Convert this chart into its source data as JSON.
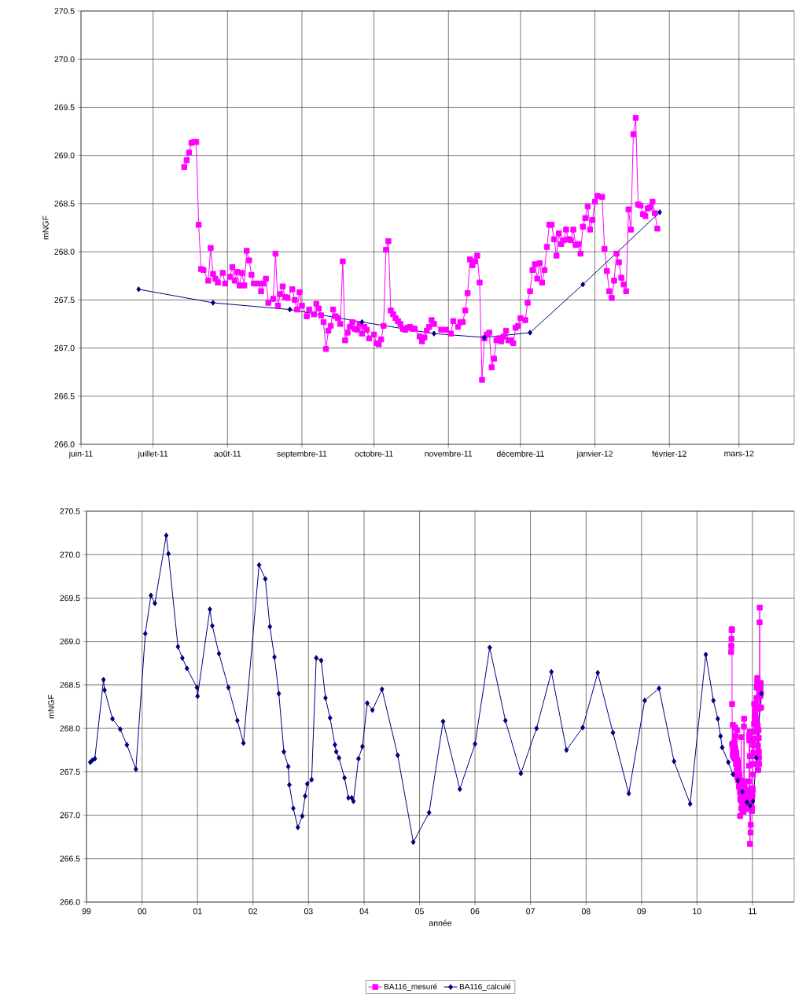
{
  "chart_data": [
    {
      "type": "line",
      "ylabel": "mNGF",
      "grid": true,
      "line_style": "solid",
      "xlim": [
        "2011-06-01",
        "2012-03-24"
      ],
      "ylim": [
        266.0,
        270.5
      ],
      "xticks": [
        {
          "value": "2011-06-01",
          "label": "juin-11"
        },
        {
          "value": "2011-07-01",
          "label": "juillet-11"
        },
        {
          "value": "2011-08-01",
          "label": "août-11"
        },
        {
          "value": "2011-09-01",
          "label": "septembre-11"
        },
        {
          "value": "2011-10-01",
          "label": "octobre-11"
        },
        {
          "value": "2011-11-01",
          "label": "novembre-11"
        },
        {
          "value": "2011-12-01",
          "label": "décembre-11"
        },
        {
          "value": "2012-01-01",
          "label": "janvier-12"
        },
        {
          "value": "2012-02-01",
          "label": "février-12"
        },
        {
          "value": "2012-03-01",
          "label": "mars-12"
        }
      ],
      "yticks": [
        {
          "value": 266,
          "label": "266.0"
        },
        266.5,
        {
          "value": 267,
          "label": "267.0"
        },
        267.5,
        {
          "value": 268,
          "label": "268.0"
        },
        268.5,
        {
          "value": 269,
          "label": "269.0"
        },
        269.5,
        {
          "value": 270,
          "label": "270.0"
        },
        270.5
      ],
      "series": [
        {
          "color": "#ff00ff",
          "marker": "square",
          "x": [
            "2011-07-14",
            "2011-07-15",
            "2011-07-16",
            "2011-07-17",
            "2011-07-18",
            "2011-07-19",
            "2011-07-20",
            "2011-07-21",
            "2011-07-22",
            "2011-07-24",
            "2011-07-25",
            "2011-07-26",
            "2011-07-27",
            "2011-07-28",
            "2011-07-30",
            "2011-07-31",
            "2011-08-02",
            "2011-08-03",
            "2011-08-04",
            "2011-08-05",
            "2011-08-06",
            "2011-08-07",
            "2011-08-08",
            "2011-08-09",
            "2011-08-10",
            "2011-08-11",
            "2011-08-12",
            "2011-08-14",
            "2011-08-15",
            "2011-08-16",
            "2011-08-17",
            "2011-08-18",
            "2011-08-20",
            "2011-08-21",
            "2011-08-22",
            "2011-08-23",
            "2011-08-24",
            "2011-08-25",
            "2011-08-26",
            "2011-08-28",
            "2011-08-29",
            "2011-08-30",
            "2011-08-31",
            "2011-09-01",
            "2011-09-03",
            "2011-09-04",
            "2011-09-06",
            "2011-09-07",
            "2011-09-08",
            "2011-09-09",
            "2011-09-10",
            "2011-09-11",
            "2011-09-12",
            "2011-09-13",
            "2011-09-14",
            "2011-09-15",
            "2011-09-16",
            "2011-09-17",
            "2011-09-18",
            "2011-09-19",
            "2011-09-20",
            "2011-09-21",
            "2011-09-22",
            "2011-09-23",
            "2011-09-24",
            "2011-09-25",
            "2011-09-26",
            "2011-09-27",
            "2011-09-28",
            "2011-09-29",
            "2011-10-01",
            "2011-10-02",
            "2011-10-03",
            "2011-10-04",
            "2011-10-05",
            "2011-10-06",
            "2011-10-07",
            "2011-10-08",
            "2011-10-09",
            "2011-10-10",
            "2011-10-11",
            "2011-10-12",
            "2011-10-13",
            "2011-10-14",
            "2011-10-15",
            "2011-10-16",
            "2011-10-17",
            "2011-10-18",
            "2011-10-20",
            "2011-10-21",
            "2011-10-22",
            "2011-10-23",
            "2011-10-24",
            "2011-10-25",
            "2011-10-26",
            "2011-10-29",
            "2011-10-31",
            "2011-11-02",
            "2011-11-03",
            "2011-11-05",
            "2011-11-06",
            "2011-11-07",
            "2011-11-08",
            "2011-11-09",
            "2011-11-10",
            "2011-11-11",
            "2011-11-12",
            "2011-11-13",
            "2011-11-14",
            "2011-11-15",
            "2011-11-16",
            "2011-11-17",
            "2011-11-18",
            "2011-11-19",
            "2011-11-20",
            "2011-11-21",
            "2011-11-22",
            "2011-11-23",
            "2011-11-24",
            "2011-11-25",
            "2011-11-26",
            "2011-11-27",
            "2011-11-28",
            "2011-11-29",
            "2011-11-30",
            "2011-12-01",
            "2011-12-03",
            "2011-12-04",
            "2011-12-05",
            "2011-12-06",
            "2011-12-07",
            "2011-12-08",
            "2011-12-09",
            "2011-12-10",
            "2011-12-11",
            "2011-12-12",
            "2011-12-13",
            "2011-12-14",
            "2011-12-15",
            "2011-12-16",
            "2011-12-17",
            "2011-12-18",
            "2011-12-19",
            "2011-12-20",
            "2011-12-21",
            "2011-12-22",
            "2011-12-23",
            "2011-12-24",
            "2011-12-25",
            "2011-12-26",
            "2011-12-27",
            "2011-12-28",
            "2011-12-29",
            "2011-12-30",
            "2011-12-31",
            "2012-01-01",
            "2012-01-02",
            "2012-01-04",
            "2012-01-05",
            "2012-01-06",
            "2012-01-07",
            "2012-01-08",
            "2012-01-09",
            "2012-01-10",
            "2012-01-11",
            "2012-01-12",
            "2012-01-13",
            "2012-01-14",
            "2012-01-15",
            "2012-01-16",
            "2012-01-17",
            "2012-01-18",
            "2012-01-19",
            "2012-01-20",
            "2012-01-21",
            "2012-01-22",
            "2012-01-23",
            "2012-01-24",
            "2012-01-25",
            "2012-01-26",
            "2012-01-27"
          ],
          "values": [
            268.88,
            268.95,
            269.03,
            269.13,
            269.14,
            269.14,
            268.28,
            267.82,
            267.81,
            267.7,
            268.04,
            267.77,
            267.72,
            267.68,
            267.78,
            267.67,
            267.74,
            267.84,
            267.7,
            267.79,
            267.65,
            267.78,
            267.65,
            268.01,
            267.91,
            267.76,
            267.67,
            267.67,
            267.59,
            267.67,
            267.72,
            267.47,
            267.51,
            267.98,
            267.44,
            267.56,
            267.64,
            267.53,
            267.52,
            267.61,
            267.5,
            267.4,
            267.58,
            267.44,
            267.33,
            267.4,
            267.35,
            267.46,
            267.41,
            267.34,
            267.27,
            266.99,
            267.18,
            267.23,
            267.4,
            267.33,
            267.31,
            267.25,
            267.9,
            267.08,
            267.16,
            267.22,
            267.27,
            267.2,
            267.19,
            267.25,
            267.15,
            267.22,
            267.19,
            267.1,
            267.14,
            267.05,
            267.04,
            267.09,
            267.23,
            268.02,
            268.11,
            267.39,
            267.35,
            267.31,
            267.28,
            267.25,
            267.2,
            267.19,
            267.21,
            267.22,
            267.2,
            267.2,
            267.12,
            267.07,
            267.11,
            267.18,
            267.22,
            267.29,
            267.25,
            267.19,
            267.19,
            267.15,
            267.28,
            267.22,
            267.27,
            267.27,
            267.39,
            267.57,
            267.92,
            267.86,
            267.9,
            267.96,
            267.68,
            266.67,
            267.1,
            267.14,
            267.16,
            266.8,
            266.89,
            267.08,
            267.1,
            267.07,
            267.12,
            267.18,
            267.08,
            267.08,
            267.05,
            267.21,
            267.23,
            267.31,
            267.29,
            267.47,
            267.59,
            267.81,
            267.87,
            267.72,
            267.88,
            267.68,
            267.81,
            268.05,
            268.28,
            268.28,
            268.13,
            267.96,
            268.19,
            268.08,
            268.12,
            268.23,
            268.13,
            268.12,
            268.23,
            268.07,
            268.08,
            267.98,
            268.26,
            268.35,
            268.47,
            268.23,
            268.33,
            268.52,
            268.58,
            268.57,
            268.03,
            267.8,
            267.59,
            267.52,
            267.7,
            267.98,
            267.89,
            267.73,
            267.66,
            267.59,
            268.44,
            268.23,
            269.22,
            269.39,
            268.49,
            268.48,
            268.39,
            268.37,
            268.45,
            268.46,
            268.52,
            268.4,
            268.24
          ]
        },
        {
          "color": "#000080",
          "marker": "diamond",
          "x": [
            "2011-06-25",
            "2011-07-26",
            "2011-08-27",
            "2011-09-26",
            "2011-10-26",
            "2011-11-16",
            "2011-12-05",
            "2011-12-27",
            "2012-01-28"
          ],
          "values": [
            267.61,
            267.47,
            267.4,
            267.27,
            267.15,
            267.11,
            267.16,
            267.66,
            268.41
          ]
        }
      ]
    },
    {
      "type": "line",
      "ylabel": "mNGF",
      "xlabel": "année",
      "grid": true,
      "line_style": "solid",
      "legend": "bottom",
      "xlim": [
        "1999-12-01",
        "2012-09-01"
      ],
      "ylim": [
        266.0,
        270.5
      ],
      "xticks": [
        {
          "value": "1999-12-01",
          "label": "99"
        },
        {
          "value": "2000-12-01",
          "label": "00"
        },
        {
          "value": "2001-12-01",
          "label": "01"
        },
        {
          "value": "2002-12-01",
          "label": "02"
        },
        {
          "value": "2003-12-01",
          "label": "03"
        },
        {
          "value": "2004-12-01",
          "label": "04"
        },
        {
          "value": "2005-12-01",
          "label": "05"
        },
        {
          "value": "2006-12-01",
          "label": "06"
        },
        {
          "value": "2007-12-01",
          "label": "07"
        },
        {
          "value": "2008-12-01",
          "label": "08"
        },
        {
          "value": "2009-12-01",
          "label": "09"
        },
        {
          "value": "2010-12-01",
          "label": "10"
        },
        {
          "value": "2011-12-01",
          "label": "11"
        }
      ],
      "yticks": [
        {
          "value": 266,
          "label": "266.0"
        },
        266.5,
        {
          "value": 267,
          "label": "267.0"
        },
        267.5,
        {
          "value": 268,
          "label": "268.0"
        },
        268.5,
        {
          "value": 269,
          "label": "269.0"
        },
        269.5,
        {
          "value": 270,
          "label": "270.0"
        },
        270.5
      ],
      "series": [
        {
          "name": "BA116_mesuré",
          "color": "#ff00ff",
          "marker": "square",
          "x": [
            "2011-07-14",
            "2011-07-15",
            "2011-07-16",
            "2011-07-17",
            "2011-07-18",
            "2011-07-19",
            "2011-07-20",
            "2011-07-21",
            "2011-07-22",
            "2011-07-24",
            "2011-07-25",
            "2011-07-26",
            "2011-07-27",
            "2011-07-28",
            "2011-07-30",
            "2011-07-31",
            "2011-08-02",
            "2011-08-03",
            "2011-08-04",
            "2011-08-05",
            "2011-08-06",
            "2011-08-07",
            "2011-08-08",
            "2011-08-09",
            "2011-08-10",
            "2011-08-11",
            "2011-08-12",
            "2011-08-14",
            "2011-08-15",
            "2011-08-16",
            "2011-08-17",
            "2011-08-18",
            "2011-08-20",
            "2011-08-21",
            "2011-08-22",
            "2011-08-23",
            "2011-08-24",
            "2011-08-25",
            "2011-08-26",
            "2011-08-28",
            "2011-08-29",
            "2011-08-30",
            "2011-08-31",
            "2011-09-01",
            "2011-09-03",
            "2011-09-04",
            "2011-09-06",
            "2011-09-07",
            "2011-09-08",
            "2011-09-09",
            "2011-09-10",
            "2011-09-11",
            "2011-09-12",
            "2011-09-13",
            "2011-09-14",
            "2011-09-15",
            "2011-09-16",
            "2011-09-17",
            "2011-09-18",
            "2011-09-19",
            "2011-09-20",
            "2011-09-21",
            "2011-09-22",
            "2011-09-23",
            "2011-09-24",
            "2011-09-25",
            "2011-09-26",
            "2011-09-27",
            "2011-09-28",
            "2011-09-29",
            "2011-10-01",
            "2011-10-02",
            "2011-10-03",
            "2011-10-04",
            "2011-10-05",
            "2011-10-06",
            "2011-10-07",
            "2011-10-08",
            "2011-10-09",
            "2011-10-10",
            "2011-10-11",
            "2011-10-12",
            "2011-10-13",
            "2011-10-14",
            "2011-10-15",
            "2011-10-16",
            "2011-10-17",
            "2011-10-18",
            "2011-10-20",
            "2011-10-21",
            "2011-10-22",
            "2011-10-23",
            "2011-10-24",
            "2011-10-25",
            "2011-10-26",
            "2011-10-29",
            "2011-10-31",
            "2011-11-02",
            "2011-11-03",
            "2011-11-05",
            "2011-11-06",
            "2011-11-07",
            "2011-11-08",
            "2011-11-09",
            "2011-11-10",
            "2011-11-11",
            "2011-11-12",
            "2011-11-13",
            "2011-11-14",
            "2011-11-15",
            "2011-11-16",
            "2011-11-17",
            "2011-11-18",
            "2011-11-19",
            "2011-11-20",
            "2011-11-21",
            "2011-11-22",
            "2011-11-23",
            "2011-11-24",
            "2011-11-25",
            "2011-11-26",
            "2011-11-27",
            "2011-11-28",
            "2011-11-29",
            "2011-11-30",
            "2011-12-01",
            "2011-12-03",
            "2011-12-04",
            "2011-12-05",
            "2011-12-06",
            "2011-12-07",
            "2011-12-08",
            "2011-12-09",
            "2011-12-10",
            "2011-12-11",
            "2011-12-12",
            "2011-12-13",
            "2011-12-14",
            "2011-12-15",
            "2011-12-16",
            "2011-12-17",
            "2011-12-18",
            "2011-12-19",
            "2011-12-20",
            "2011-12-21",
            "2011-12-22",
            "2011-12-23",
            "2011-12-24",
            "2011-12-25",
            "2011-12-26",
            "2011-12-27",
            "2011-12-28",
            "2011-12-29",
            "2011-12-30",
            "2011-12-31",
            "2012-01-01",
            "2012-01-02",
            "2012-01-04",
            "2012-01-05",
            "2012-01-06",
            "2012-01-07",
            "2012-01-08",
            "2012-01-09",
            "2012-01-10",
            "2012-01-11",
            "2012-01-12",
            "2012-01-13",
            "2012-01-14",
            "2012-01-15",
            "2012-01-16",
            "2012-01-17",
            "2012-01-18",
            "2012-01-19",
            "2012-01-20",
            "2012-01-21",
            "2012-01-22",
            "2012-01-23",
            "2012-01-24",
            "2012-01-25",
            "2012-01-26",
            "2012-01-27"
          ],
          "values": [
            268.88,
            268.95,
            269.03,
            269.13,
            269.14,
            269.14,
            268.28,
            267.82,
            267.81,
            267.7,
            268.04,
            267.77,
            267.72,
            267.68,
            267.78,
            267.67,
            267.74,
            267.84,
            267.7,
            267.79,
            267.65,
            267.78,
            267.65,
            268.01,
            267.91,
            267.76,
            267.67,
            267.67,
            267.59,
            267.67,
            267.72,
            267.47,
            267.51,
            267.98,
            267.44,
            267.56,
            267.64,
            267.53,
            267.52,
            267.61,
            267.5,
            267.4,
            267.58,
            267.44,
            267.33,
            267.4,
            267.35,
            267.46,
            267.41,
            267.34,
            267.27,
            266.99,
            267.18,
            267.23,
            267.4,
            267.33,
            267.31,
            267.25,
            267.9,
            267.08,
            267.16,
            267.22,
            267.27,
            267.2,
            267.19,
            267.25,
            267.15,
            267.22,
            267.19,
            267.1,
            267.14,
            267.05,
            267.04,
            267.09,
            267.23,
            268.02,
            268.11,
            267.39,
            267.35,
            267.31,
            267.28,
            267.25,
            267.2,
            267.19,
            267.21,
            267.22,
            267.2,
            267.2,
            267.12,
            267.07,
            267.11,
            267.18,
            267.22,
            267.29,
            267.25,
            267.19,
            267.19,
            267.15,
            267.28,
            267.22,
            267.27,
            267.27,
            267.39,
            267.57,
            267.92,
            267.86,
            267.9,
            267.96,
            267.68,
            266.67,
            267.1,
            267.14,
            267.16,
            266.8,
            266.89,
            267.08,
            267.1,
            267.07,
            267.12,
            267.18,
            267.08,
            267.08,
            267.05,
            267.21,
            267.23,
            267.31,
            267.29,
            267.47,
            267.59,
            267.81,
            267.87,
            267.72,
            267.88,
            267.68,
            267.81,
            268.05,
            268.28,
            268.28,
            268.13,
            267.96,
            268.19,
            268.08,
            268.12,
            268.23,
            268.13,
            268.12,
            268.23,
            268.07,
            268.08,
            267.98,
            268.26,
            268.35,
            268.47,
            268.23,
            268.33,
            268.52,
            268.58,
            268.57,
            268.03,
            267.8,
            267.59,
            267.52,
            267.7,
            267.98,
            267.89,
            267.73,
            267.66,
            267.59,
            268.44,
            268.23,
            269.22,
            269.39,
            268.49,
            268.48,
            268.39,
            268.37,
            268.45,
            268.46,
            268.52,
            268.4,
            268.24
          ]
        },
        {
          "name": "BA116_calculé",
          "color": "#000080",
          "marker": "diamond",
          "x": [
            "1999-12-26",
            "2000-01-07",
            "2000-01-25",
            "2000-03-22",
            "2000-03-29",
            "2000-05-20",
            "2000-07-10",
            "2000-08-23",
            "2000-10-21",
            "2000-12-22",
            "2001-01-28",
            "2001-02-23",
            "2001-05-09",
            "2001-05-23",
            "2001-07-25",
            "2001-08-23",
            "2001-09-22",
            "2001-11-27",
            "2001-12-01",
            "2002-02-20",
            "2002-03-08",
            "2002-04-21",
            "2002-06-22",
            "2002-08-20",
            "2002-09-29",
            "2003-01-10",
            "2003-02-20",
            "2003-03-22",
            "2003-04-21",
            "2003-05-20",
            "2003-06-22",
            "2003-07-21",
            "2003-07-28",
            "2003-08-23",
            "2003-09-22",
            "2003-10-21",
            "2003-11-09",
            "2003-11-23",
            "2003-12-22",
            "2004-01-21",
            "2004-02-23",
            "2004-03-22",
            "2004-04-21",
            "2004-05-23",
            "2004-06-01",
            "2004-06-19",
            "2004-07-25",
            "2004-08-20",
            "2004-09-11",
            "2004-09-22",
            "2004-10-25",
            "2004-11-20",
            "2004-12-22",
            "2005-01-25",
            "2005-03-29",
            "2005-07-10",
            "2005-10-21",
            "2006-02-02",
            "2006-05-05",
            "2006-08-23",
            "2006-12-01",
            "2007-03-08",
            "2007-06-19",
            "2007-09-29",
            "2008-01-10",
            "2008-04-17",
            "2008-07-25",
            "2008-11-09",
            "2009-02-16",
            "2009-05-27",
            "2009-09-08",
            "2009-12-22",
            "2010-03-26",
            "2010-07-03",
            "2010-10-17",
            "2011-01-28",
            "2011-03-19",
            "2011-04-17",
            "2011-05-05",
            "2011-05-16",
            "2011-06-25",
            "2011-07-26",
            "2011-08-27",
            "2011-09-26",
            "2011-10-26",
            "2011-11-16",
            "2011-12-05",
            "2011-12-27",
            "2012-01-28"
          ],
          "values": [
            267.61,
            267.63,
            267.65,
            268.56,
            268.44,
            268.11,
            267.99,
            267.81,
            267.53,
            269.09,
            269.53,
            269.44,
            270.22,
            270.01,
            268.94,
            268.81,
            268.69,
            268.47,
            268.37,
            269.37,
            269.18,
            268.86,
            268.47,
            268.09,
            267.83,
            269.88,
            269.72,
            269.17,
            268.82,
            268.4,
            267.73,
            267.56,
            267.35,
            267.08,
            266.86,
            266.99,
            267.22,
            267.36,
            267.41,
            268.81,
            268.78,
            268.35,
            268.12,
            267.81,
            267.73,
            267.66,
            267.43,
            267.2,
            267.2,
            267.16,
            267.65,
            267.79,
            268.29,
            268.21,
            268.45,
            267.69,
            266.69,
            267.03,
            268.08,
            267.3,
            267.82,
            268.93,
            268.09,
            267.48,
            268.0,
            268.65,
            267.75,
            268.01,
            268.64,
            267.95,
            267.25,
            268.32,
            268.46,
            267.62,
            267.13,
            268.85,
            268.32,
            268.11,
            267.91,
            267.78,
            267.61,
            267.47,
            267.4,
            267.27,
            267.15,
            267.11,
            267.16,
            267.66,
            268.4
          ]
        }
      ]
    }
  ]
}
